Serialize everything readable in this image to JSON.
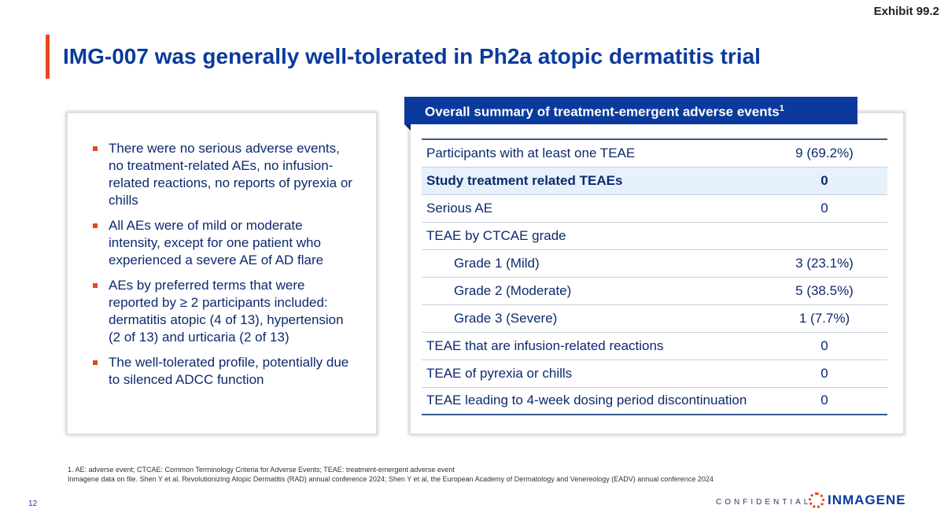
{
  "exhibit": "Exhibit 99.2",
  "title": "IMG-007 was generally well-tolerated in Ph2a atopic dermatitis trial",
  "bullets": [
    "There were no serious adverse events, no treatment-related AEs, no infusion-related reactions, no reports of pyrexia or chills",
    "All AEs were of mild or moderate intensity, except for one patient who experienced a severe AE of AD flare",
    "AEs by preferred terms that were reported by ≥ 2 participants included: dermatitis atopic (4 of 13), hypertension (2 of 13) and urticaria (2 of 13)",
    "The well-tolerated profile, potentially due to silenced ADCC function"
  ],
  "table": {
    "title": "Overall summary of treatment-emergent adverse events",
    "title_sup": "1",
    "rows": [
      {
        "label": "Participants with at least one TEAE",
        "value": "9 (69.2%)"
      },
      {
        "label": "Study treatment related TEAEs",
        "value": "0"
      },
      {
        "label": "Serious AE",
        "value": "0"
      },
      {
        "label": "TEAE by CTCAE grade",
        "value": ""
      },
      {
        "label": "Grade 1 (Mild)",
        "value": "3 (23.1%)"
      },
      {
        "label": "Grade 2 (Moderate)",
        "value": "5 (38.5%)"
      },
      {
        "label": "Grade 3 (Severe)",
        "value": "1 (7.7%)"
      },
      {
        "label": "TEAE that are infusion-related reactions",
        "value": "0"
      },
      {
        "label": "TEAE of pyrexia or chills",
        "value": "0"
      },
      {
        "label": "TEAE leading to 4-week dosing period discontinuation",
        "value": "0"
      }
    ]
  },
  "footnotes": [
    "1. AE: adverse event; CTCAE: Common Terminology Criteria for Adverse Events; TEAE: treatment-emergent adverse event",
    "Inmagene data on file. Shen Y et al. Revolutionizing Atopic Dermatitis (RAD) annual conference 2024; Shen Y et al, the European Academy of Dermatology and Venereology (EADV) annual conference 2024"
  ],
  "page_number": "12",
  "confidential": "CONFIDENTIAL",
  "logo_text": "INMAGENE"
}
